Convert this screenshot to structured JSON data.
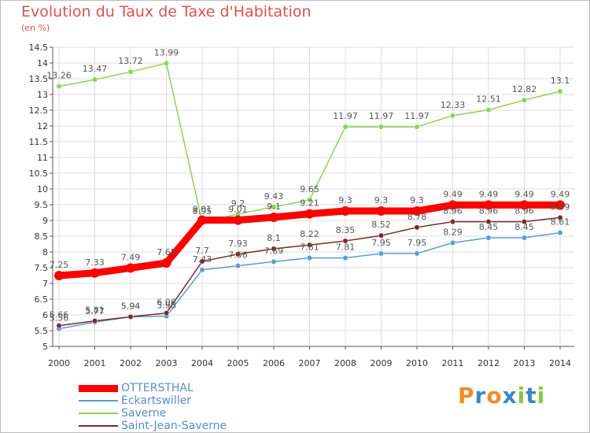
{
  "title": "Evolution du Taux de Taxe d'Habitation",
  "unit": "(en %)",
  "logo": {
    "text": "Proxiti",
    "letters": [
      "P",
      "r",
      "o",
      "x",
      "i",
      "t",
      "i"
    ],
    "colors": [
      "#f28c28",
      "#3a87c9",
      "#f28c28",
      "#3a87c9",
      "#8cc63f",
      "#3a87c9",
      "#8cc63f"
    ]
  },
  "chart_data": {
    "type": "line",
    "title": "Evolution du Taux de Taxe d'Habitation",
    "ylabel": "(en %)",
    "x": [
      "2000",
      "2001",
      "2002",
      "2003",
      "2004",
      "2005",
      "2006",
      "2007",
      "2008",
      "2009",
      "2010",
      "2011",
      "2012",
      "2013",
      "2014"
    ],
    "ylim": [
      5,
      14.5
    ],
    "yticks": [
      "5",
      "5.5",
      "6",
      "6.5",
      "7",
      "7.5",
      "8",
      "8.5",
      "9",
      "9.5",
      "10",
      "10.5",
      "11",
      "11.5",
      "12",
      "12.5",
      "13",
      "13.5",
      "14",
      "14.5"
    ],
    "grid": true,
    "legend_position": "bottom-left",
    "series": [
      {
        "name": "OTTERSTHAL",
        "color": "#ff0000",
        "values": [
          7.25,
          7.33,
          7.49,
          7.65,
          9.01,
          9.01,
          9.1,
          9.21,
          9.3,
          9.3,
          9.3,
          9.49,
          9.49,
          9.49,
          9.49
        ],
        "labels": [
          "7.25",
          "7.33",
          "7.49",
          "7.65",
          "9.01",
          "9.01",
          "9.1",
          "9.21",
          "9.3",
          "9.3",
          "9.3",
          "9.49",
          "9.49",
          "9.49",
          "9.49"
        ]
      },
      {
        "name": "Eckartswiller",
        "color": "#5b9bd5",
        "values": [
          5.56,
          5.77,
          5.94,
          5.96,
          7.43,
          7.56,
          7.69,
          7.81,
          7.81,
          7.95,
          7.95,
          8.29,
          8.45,
          8.45,
          8.61
        ],
        "labels": [
          "5.56",
          "5.77",
          "5.94",
          "5.96",
          "7.43",
          "7.56",
          "7.69",
          "7.81",
          "7.81",
          "7.95",
          "7.95",
          "8.29",
          "8.45",
          "8.45",
          "8.61"
        ]
      },
      {
        "name": "Saverne",
        "color": "#8cd35a",
        "values": [
          13.26,
          13.47,
          13.72,
          13.99,
          8.95,
          9.2,
          9.43,
          9.65,
          11.97,
          11.97,
          11.97,
          12.33,
          12.51,
          12.82,
          13.1
        ],
        "labels": [
          "13.26",
          "13.47",
          "13.72",
          "13.99",
          "8.95",
          "9.2",
          "9.43",
          "9.65",
          "11.97",
          "11.97",
          "11.97",
          "12.33",
          "12.51",
          "12.82",
          "13.1"
        ]
      },
      {
        "name": "Saint-Jean-Saverne",
        "color": "#7a2a2a",
        "values": [
          5.66,
          5.81,
          5.94,
          6.06,
          7.7,
          7.93,
          8.1,
          8.22,
          8.35,
          8.52,
          8.78,
          8.96,
          8.96,
          8.96,
          9.09
        ],
        "labels": [
          "5.66",
          "5.81",
          "5.94",
          "6.06",
          "7.7",
          "7.93",
          "8.1",
          "8.22",
          "8.35",
          "8.52",
          "8.78",
          "8.96",
          "8.96",
          "8.96",
          "9.09"
        ]
      }
    ]
  }
}
